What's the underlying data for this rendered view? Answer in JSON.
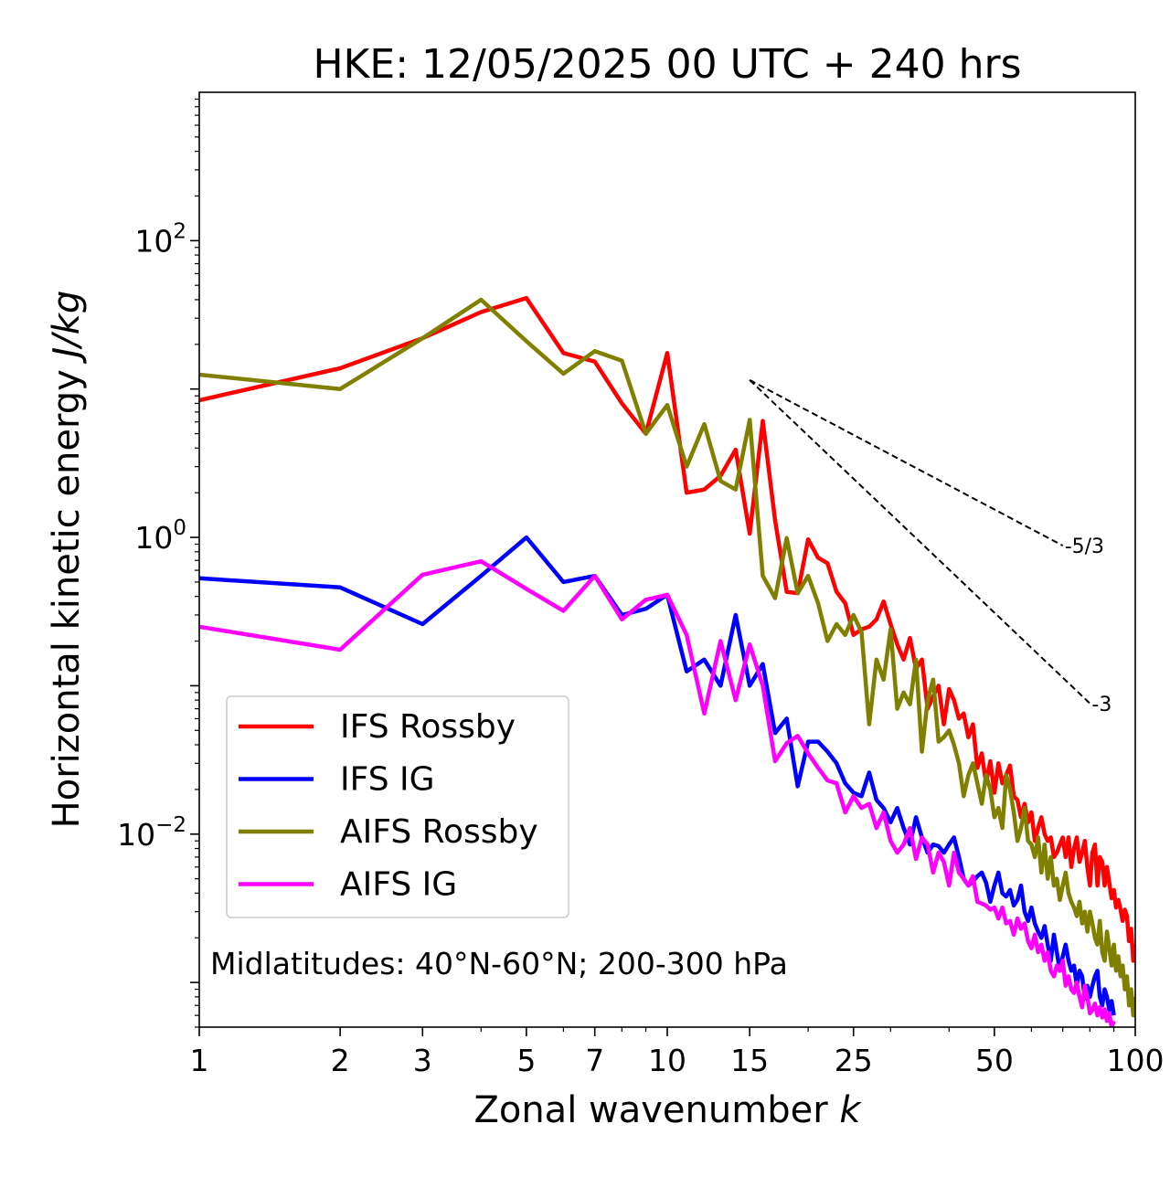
{
  "chart_data": {
    "type": "line",
    "title": "HKE: 12/05/2025 00 UTC + 240 hrs",
    "xlabel": "Zonal wavenumber",
    "xlabel_var": "k",
    "ylabel": "Horizontal kinetic energy",
    "ylabel_units": "J/kg",
    "xscale": "log",
    "yscale": "log",
    "xlim": [
      1,
      100
    ],
    "ylim": [
      0.0005,
      1000
    ],
    "x_ticks": [
      1,
      2,
      3,
      5,
      7,
      10,
      15,
      25,
      50,
      100
    ],
    "x_tick_labels": [
      "1",
      "2",
      "3",
      "5",
      "7",
      "10",
      "15",
      "25",
      "50",
      "100"
    ],
    "y_ticks": [
      {
        "value": 100,
        "base": "10",
        "exp": "2"
      },
      {
        "value": 1,
        "base": "10",
        "exp": "0"
      },
      {
        "value": 0.01,
        "base": "10",
        "exp": "−2"
      }
    ],
    "grid": false,
    "legend": {
      "position": "lower-left"
    },
    "annotation": "Midlatitudes: 40°N-60°N; 200-300 hPa",
    "reference_lines": [
      {
        "label": "-5/3",
        "slope": -1.6667,
        "x0": 15,
        "y0": 11.5,
        "x1": 70,
        "y1": 0.88,
        "color": "#000000"
      },
      {
        "label": "-3",
        "slope": -3,
        "x0": 15,
        "y0": 11.5,
        "x1": 80,
        "y1": 0.076,
        "color": "#000000"
      }
    ],
    "series": [
      {
        "name": "IFS Rossby",
        "color": "#ff0000",
        "x": [
          1,
          2,
          3,
          4,
          5,
          6,
          7,
          8,
          9,
          10,
          11,
          12,
          13,
          14,
          15,
          16,
          17,
          18,
          19,
          20,
          21,
          22,
          23,
          24,
          25,
          26,
          27,
          28,
          29,
          30,
          31,
          32,
          33,
          34,
          35,
          36,
          37,
          38,
          39,
          40,
          41,
          42,
          43,
          44,
          45,
          46,
          47,
          48,
          49,
          50,
          51,
          52,
          53,
          54,
          55,
          56,
          57,
          58,
          59,
          60,
          61,
          62,
          63,
          64,
          65,
          66,
          67,
          68,
          69,
          70,
          71,
          72,
          73,
          74,
          75,
          76,
          77,
          78,
          79,
          80,
          81,
          82,
          83,
          84,
          85,
          86,
          87,
          88,
          89,
          90,
          91,
          92,
          93,
          94,
          95,
          96,
          97,
          98,
          99,
          100
        ],
        "y": [
          8.4,
          13.8,
          22,
          33,
          41,
          17.5,
          15.3,
          8.0,
          5.0,
          17.5,
          2.0,
          2.1,
          2.6,
          3.9,
          1.06,
          6.1,
          1.3,
          0.43,
          0.42,
          0.97,
          0.73,
          0.67,
          0.43,
          0.36,
          0.22,
          0.24,
          0.25,
          0.28,
          0.37,
          0.26,
          0.19,
          0.15,
          0.21,
          0.13,
          0.15,
          0.07,
          0.085,
          0.1,
          0.055,
          0.095,
          0.08,
          0.06,
          0.065,
          0.045,
          0.055,
          0.028,
          0.035,
          0.022,
          0.031,
          0.019,
          0.03,
          0.022,
          0.025,
          0.029,
          0.018,
          0.017,
          0.013,
          0.016,
          0.012,
          0.014,
          0.009,
          0.011,
          0.013,
          0.01,
          0.009,
          0.0095,
          0.007,
          0.0075,
          0.0085,
          0.0095,
          0.007,
          0.0095,
          0.006,
          0.008,
          0.0095,
          0.0065,
          0.0075,
          0.009,
          0.006,
          0.0045,
          0.0075,
          0.0085,
          0.0045,
          0.007,
          0.0065,
          0.0045,
          0.006,
          0.0047,
          0.0037,
          0.0042,
          0.0032,
          0.0036,
          0.0031,
          0.0026,
          0.0031,
          0.0028,
          0.0019,
          0.0023,
          0.0014,
          0.0018
        ]
      },
      {
        "name": "IFS IG",
        "color": "#0000ff",
        "x": [
          1,
          2,
          3,
          4,
          5,
          6,
          7,
          8,
          9,
          10,
          11,
          12,
          13,
          14,
          15,
          16,
          17,
          18,
          19,
          20,
          21,
          22,
          23,
          24,
          25,
          26,
          27,
          28,
          29,
          30,
          31,
          32,
          33,
          34,
          35,
          36,
          37,
          38,
          39,
          40,
          41,
          42,
          43,
          44,
          45,
          46,
          47,
          48,
          49,
          50,
          51,
          52,
          53,
          54,
          55,
          56,
          57,
          58,
          59,
          60,
          61,
          62,
          63,
          64,
          65,
          66,
          67,
          68,
          69,
          70,
          71,
          72,
          73,
          74,
          75,
          76,
          77,
          78,
          79,
          80,
          81,
          82,
          83,
          84,
          85,
          86,
          87,
          88,
          89,
          90
        ],
        "y": [
          0.53,
          0.46,
          0.26,
          0.55,
          1.0,
          0.5,
          0.55,
          0.3,
          0.33,
          0.41,
          0.125,
          0.15,
          0.1,
          0.3,
          0.1,
          0.14,
          0.048,
          0.06,
          0.021,
          0.042,
          0.042,
          0.036,
          0.03,
          0.022,
          0.019,
          0.018,
          0.026,
          0.017,
          0.015,
          0.012,
          0.015,
          0.011,
          0.0085,
          0.013,
          0.0095,
          0.0075,
          0.0085,
          0.0083,
          0.0075,
          0.0085,
          0.0095,
          0.007,
          0.005,
          0.0045,
          0.0048,
          0.0052,
          0.0055,
          0.0047,
          0.0035,
          0.0045,
          0.0055,
          0.004,
          0.0038,
          0.0042,
          0.0033,
          0.0036,
          0.0045,
          0.003,
          0.0026,
          0.0032,
          0.0025,
          0.0022,
          0.002,
          0.0024,
          0.0018,
          0.0014,
          0.0021,
          0.0016,
          0.0012,
          0.0015,
          0.0018,
          0.0014,
          0.0012,
          0.0013,
          0.00095,
          0.0012,
          0.0011,
          0.00078,
          0.00095,
          0.0008,
          0.00095,
          0.0011,
          0.0012,
          0.0008,
          0.0007,
          0.0009,
          0.0008,
          0.00065,
          0.00075,
          0.0006
        ]
      },
      {
        "name": "AIFS Rossby",
        "color": "#808000",
        "x": [
          1,
          2,
          3,
          4,
          5,
          6,
          7,
          8,
          9,
          10,
          11,
          12,
          13,
          14,
          15,
          16,
          17,
          18,
          19,
          20,
          21,
          22,
          23,
          24,
          25,
          26,
          27,
          28,
          29,
          30,
          31,
          32,
          33,
          34,
          35,
          36,
          37,
          38,
          39,
          40,
          41,
          42,
          43,
          44,
          45,
          46,
          47,
          48,
          49,
          50,
          51,
          52,
          53,
          54,
          55,
          56,
          57,
          58,
          59,
          60,
          61,
          62,
          63,
          64,
          65,
          66,
          67,
          68,
          69,
          70,
          71,
          72,
          73,
          74,
          75,
          76,
          77,
          78,
          79,
          80,
          81,
          82,
          83,
          84,
          85,
          86,
          87,
          88,
          89,
          90,
          91,
          92,
          93,
          94,
          95,
          96,
          97,
          98,
          99,
          100
        ],
        "y": [
          12.5,
          10.0,
          22,
          40,
          21,
          12.7,
          18,
          15.5,
          5.0,
          7.8,
          3.0,
          5.8,
          2.4,
          2.1,
          6.2,
          0.55,
          0.39,
          0.99,
          0.42,
          0.55,
          0.36,
          0.2,
          0.26,
          0.22,
          0.3,
          0.23,
          0.055,
          0.15,
          0.11,
          0.24,
          0.07,
          0.09,
          0.075,
          0.15,
          0.036,
          0.08,
          0.11,
          0.042,
          0.045,
          0.05,
          0.04,
          0.03,
          0.018,
          0.025,
          0.03,
          0.022,
          0.016,
          0.025,
          0.02,
          0.013,
          0.015,
          0.011,
          0.025,
          0.02,
          0.014,
          0.009,
          0.011,
          0.015,
          0.009,
          0.0085,
          0.007,
          0.0095,
          0.0055,
          0.0085,
          0.005,
          0.007,
          0.0045,
          0.005,
          0.0036,
          0.0045,
          0.0055,
          0.004,
          0.0035,
          0.0032,
          0.0028,
          0.0035,
          0.0025,
          0.003,
          0.0022,
          0.003,
          0.0025,
          0.002,
          0.0018,
          0.0026,
          0.0016,
          0.0014,
          0.0022,
          0.0017,
          0.0013,
          0.0018,
          0.0012,
          0.0015,
          0.0011,
          0.0013,
          0.0009,
          0.0011,
          0.0007,
          0.0009,
          0.0006,
          0.0008
        ]
      },
      {
        "name": "AIFS IG",
        "color": "#ff00ff",
        "x": [
          1,
          2,
          3,
          4,
          5,
          6,
          7,
          8,
          9,
          10,
          11,
          12,
          13,
          14,
          15,
          16,
          17,
          18,
          19,
          20,
          21,
          22,
          23,
          24,
          25,
          26,
          27,
          28,
          29,
          30,
          31,
          32,
          33,
          34,
          35,
          36,
          37,
          38,
          39,
          40,
          41,
          42,
          43,
          44,
          45,
          46,
          47,
          48,
          49,
          50,
          51,
          52,
          53,
          54,
          55,
          56,
          57,
          58,
          59,
          60,
          61,
          62,
          63,
          64,
          65,
          66,
          67,
          68,
          69,
          70,
          71,
          72,
          73,
          74,
          75,
          76,
          77,
          78,
          79,
          80,
          81,
          82,
          83,
          84,
          85,
          86,
          87,
          88,
          89,
          90
        ],
        "y": [
          0.25,
          0.175,
          0.56,
          0.69,
          0.45,
          0.32,
          0.55,
          0.28,
          0.38,
          0.41,
          0.22,
          0.065,
          0.2,
          0.08,
          0.19,
          0.1,
          0.031,
          0.041,
          0.046,
          0.035,
          0.028,
          0.023,
          0.022,
          0.014,
          0.018,
          0.015,
          0.016,
          0.011,
          0.014,
          0.009,
          0.0075,
          0.0085,
          0.011,
          0.0068,
          0.0095,
          0.0085,
          0.0055,
          0.0075,
          0.0065,
          0.0045,
          0.0075,
          0.0055,
          0.005,
          0.0045,
          0.0052,
          0.0035,
          0.0034,
          0.0033,
          0.0031,
          0.0032,
          0.0027,
          0.0032,
          0.0025,
          0.0026,
          0.0021,
          0.0027,
          0.0023,
          0.0025,
          0.0019,
          0.0017,
          0.0021,
          0.0016,
          0.0018,
          0.0014,
          0.0016,
          0.0012,
          0.0011,
          0.0013,
          0.0012,
          0.0014,
          0.00095,
          0.0011,
          0.0009,
          0.00085,
          0.001,
          0.0008,
          0.00068,
          0.00095,
          0.0008,
          0.00062,
          0.00065,
          0.00072,
          0.0006,
          0.00068,
          0.00058,
          0.00066,
          0.00055,
          0.00062,
          0.0005,
          0.00055
        ]
      }
    ]
  }
}
